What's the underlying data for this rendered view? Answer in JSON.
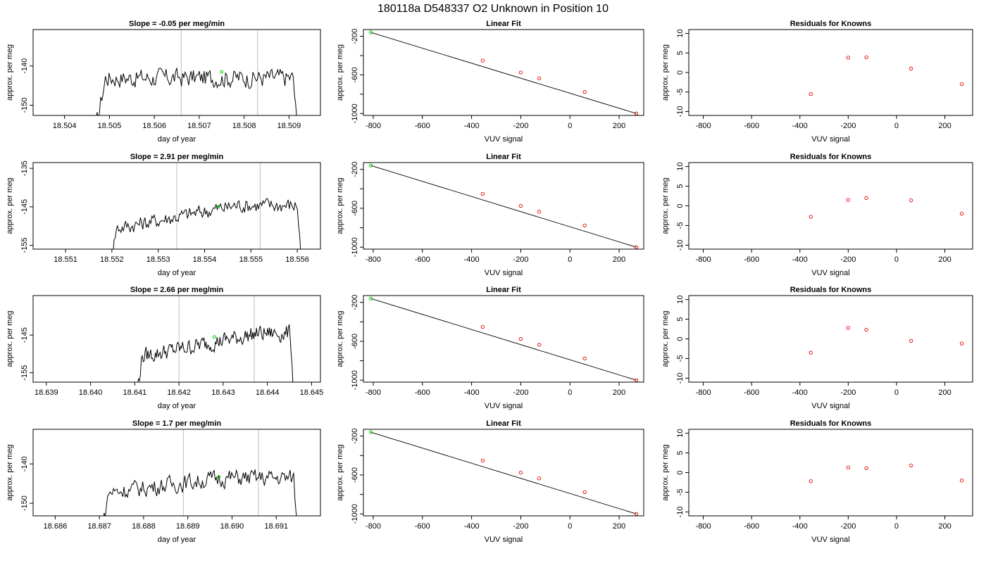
{
  "figure_title": "180118a      D548337   O2 Unknown in Position  10",
  "chart_data": [
    {
      "type": "line",
      "title": "Slope =  -0.05  per meg/min",
      "xlabel": "day of year",
      "ylabel": "approx. per meg",
      "xlim": [
        18.5033,
        18.5097
      ],
      "ylim": [
        -152.6,
        -130.7
      ],
      "xticks": [
        18.504,
        18.505,
        18.506,
        18.507,
        18.508,
        18.509
      ],
      "yticks": [
        -140,
        -150
      ],
      "vlines": [
        18.5066,
        18.5083
      ],
      "x_start": 18.5047,
      "x_end": 18.5092,
      "baseline": -143,
      "amplitude": 2.2,
      "trend": 0,
      "marker": {
        "x": 18.5075,
        "y": -141.5,
        "color": "#00cc00"
      },
      "line_color": "#000000"
    },
    {
      "type": "line",
      "title": "Slope =  2.91  per meg/min",
      "xlabel": "day of year",
      "ylabel": "approx. per meg",
      "xlim": [
        18.5503,
        18.5565
      ],
      "ylim": [
        -156,
        -133.5
      ],
      "xticks": [
        18.551,
        18.552,
        18.553,
        18.554,
        18.555,
        18.556
      ],
      "yticks": [
        -135,
        -145,
        -155
      ],
      "vlines": [
        18.5534,
        18.5552
      ],
      "x_start": 18.5519,
      "x_end": 18.5561,
      "baseline": -151,
      "amplitude": 1.8,
      "trend": 2300,
      "marker": {
        "x": 18.5543,
        "y": -145,
        "color": "#00cc00"
      },
      "line_color": "#000000"
    },
    {
      "type": "line",
      "title": "Slope =  2.66  per meg/min",
      "xlabel": "day of year",
      "ylabel": "approx. per meg",
      "xlim": [
        18.6387,
        18.6452
      ],
      "ylim": [
        -157.5,
        -134.5
      ],
      "xticks": [
        18.639,
        18.64,
        18.641,
        18.642,
        18.643,
        18.644,
        18.645
      ],
      "yticks": [
        -145,
        -155
      ],
      "vlines": [
        18.642,
        18.6437
      ],
      "x_start": 18.641,
      "x_end": 18.6446,
      "baseline": -151,
      "amplitude": 2,
      "trend": 2300,
      "marker": {
        "x": 18.6428,
        "y": -145.5,
        "color": "#00cc00"
      },
      "line_color": "#000000"
    },
    {
      "type": "line",
      "title": "Slope =  1.7  per meg/min",
      "xlabel": "day of year",
      "ylabel": "approx. per meg",
      "xlim": [
        18.6855,
        18.692
      ],
      "ylim": [
        -153.2,
        -131.2
      ],
      "xticks": [
        18.686,
        18.687,
        18.688,
        18.689,
        18.69,
        18.691
      ],
      "yticks": [
        -140,
        -150
      ],
      "vlines": [
        18.6889,
        18.6906
      ],
      "x_start": 18.687,
      "x_end": 18.6915,
      "baseline": -147.5,
      "amplitude": 2,
      "trend": 1400,
      "marker": {
        "x": 18.6897,
        "y": -143.3,
        "color": "#00cc00"
      },
      "line_color": "#000000"
    },
    {
      "type": "scatter",
      "title": "Linear Fit",
      "xlabel": "VUV signal",
      "ylabel": "approx. per meg",
      "xlim": [
        -840,
        300
      ],
      "ylim": [
        -1020,
        -130
      ],
      "xticks": [
        -800,
        -600,
        -400,
        -200,
        0,
        200
      ],
      "yticks": [
        -200,
        -600,
        -1000
      ],
      "yticks_minor": [
        -400,
        -800
      ],
      "fit_line": {
        "x": [
          -810,
          270
        ],
        "y": [
          -160,
          -1000
        ]
      },
      "points_red": {
        "x": [
          -355,
          -200,
          -125,
          60,
          270
        ],
        "y": [
          -452,
          -575,
          -635,
          -777,
          -1000
        ]
      },
      "point_green": {
        "x": -810,
        "y": -160
      }
    },
    {
      "type": "scatter",
      "title": "Linear Fit",
      "xlabel": "VUV signal",
      "ylabel": "approx. per meg",
      "xlim": [
        -840,
        300
      ],
      "ylim": [
        -1020,
        -130
      ],
      "xticks": [
        -800,
        -600,
        -400,
        -200,
        0,
        200
      ],
      "yticks": [
        -200,
        -600,
        -1000
      ],
      "yticks_minor": [
        -400,
        -800
      ],
      "fit_line": {
        "x": [
          -810,
          270
        ],
        "y": [
          -160,
          -1000
        ]
      },
      "points_red": {
        "x": [
          -355,
          -200,
          -125,
          60,
          270
        ],
        "y": [
          -452,
          -575,
          -635,
          -777,
          -1000
        ]
      },
      "point_green": {
        "x": -810,
        "y": -160
      }
    },
    {
      "type": "scatter",
      "title": "Linear Fit",
      "xlabel": "VUV signal",
      "ylabel": "approx. per meg",
      "xlim": [
        -840,
        300
      ],
      "ylim": [
        -1020,
        -130
      ],
      "xticks": [
        -800,
        -600,
        -400,
        -200,
        0,
        200
      ],
      "yticks": [
        -200,
        -600,
        -1000
      ],
      "yticks_minor": [
        -400,
        -800
      ],
      "fit_line": {
        "x": [
          -810,
          270
        ],
        "y": [
          -160,
          -1000
        ]
      },
      "points_red": {
        "x": [
          -355,
          -200,
          -125,
          60,
          270
        ],
        "y": [
          -452,
          -575,
          -635,
          -777,
          -1000
        ]
      },
      "point_green": {
        "x": -810,
        "y": -160
      }
    },
    {
      "type": "scatter",
      "title": "Linear Fit",
      "xlabel": "VUV signal",
      "ylabel": "approx. per meg",
      "xlim": [
        -840,
        300
      ],
      "ylim": [
        -1020,
        -130
      ],
      "xticks": [
        -800,
        -600,
        -400,
        -200,
        0,
        200
      ],
      "yticks": [
        -200,
        -600,
        -1000
      ],
      "yticks_minor": [
        -400,
        -800
      ],
      "fit_line": {
        "x": [
          -810,
          270
        ],
        "y": [
          -160,
          -1000
        ]
      },
      "points_red": {
        "x": [
          -355,
          -200,
          -125,
          60,
          270
        ],
        "y": [
          -452,
          -575,
          -635,
          -777,
          -1000
        ]
      },
      "point_green": {
        "x": -810,
        "y": -160
      }
    },
    {
      "type": "scatter",
      "title": "Residuals for Knowns",
      "xlabel": "VUV signal",
      "ylabel": "approx. per meg",
      "xlim": [
        -860,
        315
      ],
      "ylim": [
        -11,
        11
      ],
      "xticks": [
        -800,
        -600,
        -400,
        -200,
        0,
        200
      ],
      "yticks": [
        10,
        5,
        0,
        -5,
        -10
      ],
      "points_red": {
        "x": [
          -355,
          -200,
          -125,
          60,
          270
        ],
        "y": [
          -5.5,
          3.8,
          3.9,
          1.0,
          -3.0
        ]
      }
    },
    {
      "type": "scatter",
      "title": "Residuals for Knowns",
      "xlabel": "VUV signal",
      "ylabel": "approx. per meg",
      "xlim": [
        -860,
        315
      ],
      "ylim": [
        -11,
        11
      ],
      "xticks": [
        -800,
        -600,
        -400,
        -200,
        0,
        200
      ],
      "yticks": [
        10,
        5,
        0,
        -5,
        -10
      ],
      "points_red": {
        "x": [
          -355,
          -200,
          -125,
          60,
          270
        ],
        "y": [
          -2.8,
          1.5,
          2.0,
          1.4,
          -2.0
        ]
      }
    },
    {
      "type": "scatter",
      "title": "Residuals for Knowns",
      "xlabel": "VUV signal",
      "ylabel": "approx. per meg",
      "xlim": [
        -860,
        315
      ],
      "ylim": [
        -11,
        11
      ],
      "xticks": [
        -800,
        -600,
        -400,
        -200,
        0,
        200
      ],
      "yticks": [
        10,
        5,
        0,
        -5,
        -10
      ],
      "points_red": {
        "x": [
          -355,
          -200,
          -125,
          60,
          270
        ],
        "y": [
          -3.5,
          2.8,
          2.3,
          -0.5,
          -1.2
        ]
      }
    },
    {
      "type": "scatter",
      "title": "Residuals for Knowns",
      "xlabel": "VUV signal",
      "ylabel": "approx. per meg",
      "xlim": [
        -860,
        315
      ],
      "ylim": [
        -11,
        11
      ],
      "xticks": [
        -800,
        -600,
        -400,
        -200,
        0,
        200
      ],
      "yticks": [
        10,
        5,
        0,
        -5,
        -10
      ],
      "points_red": {
        "x": [
          -355,
          -200,
          -125,
          60,
          270
        ],
        "y": [
          -2.2,
          1.3,
          1.1,
          1.8,
          -2.0
        ]
      }
    }
  ]
}
